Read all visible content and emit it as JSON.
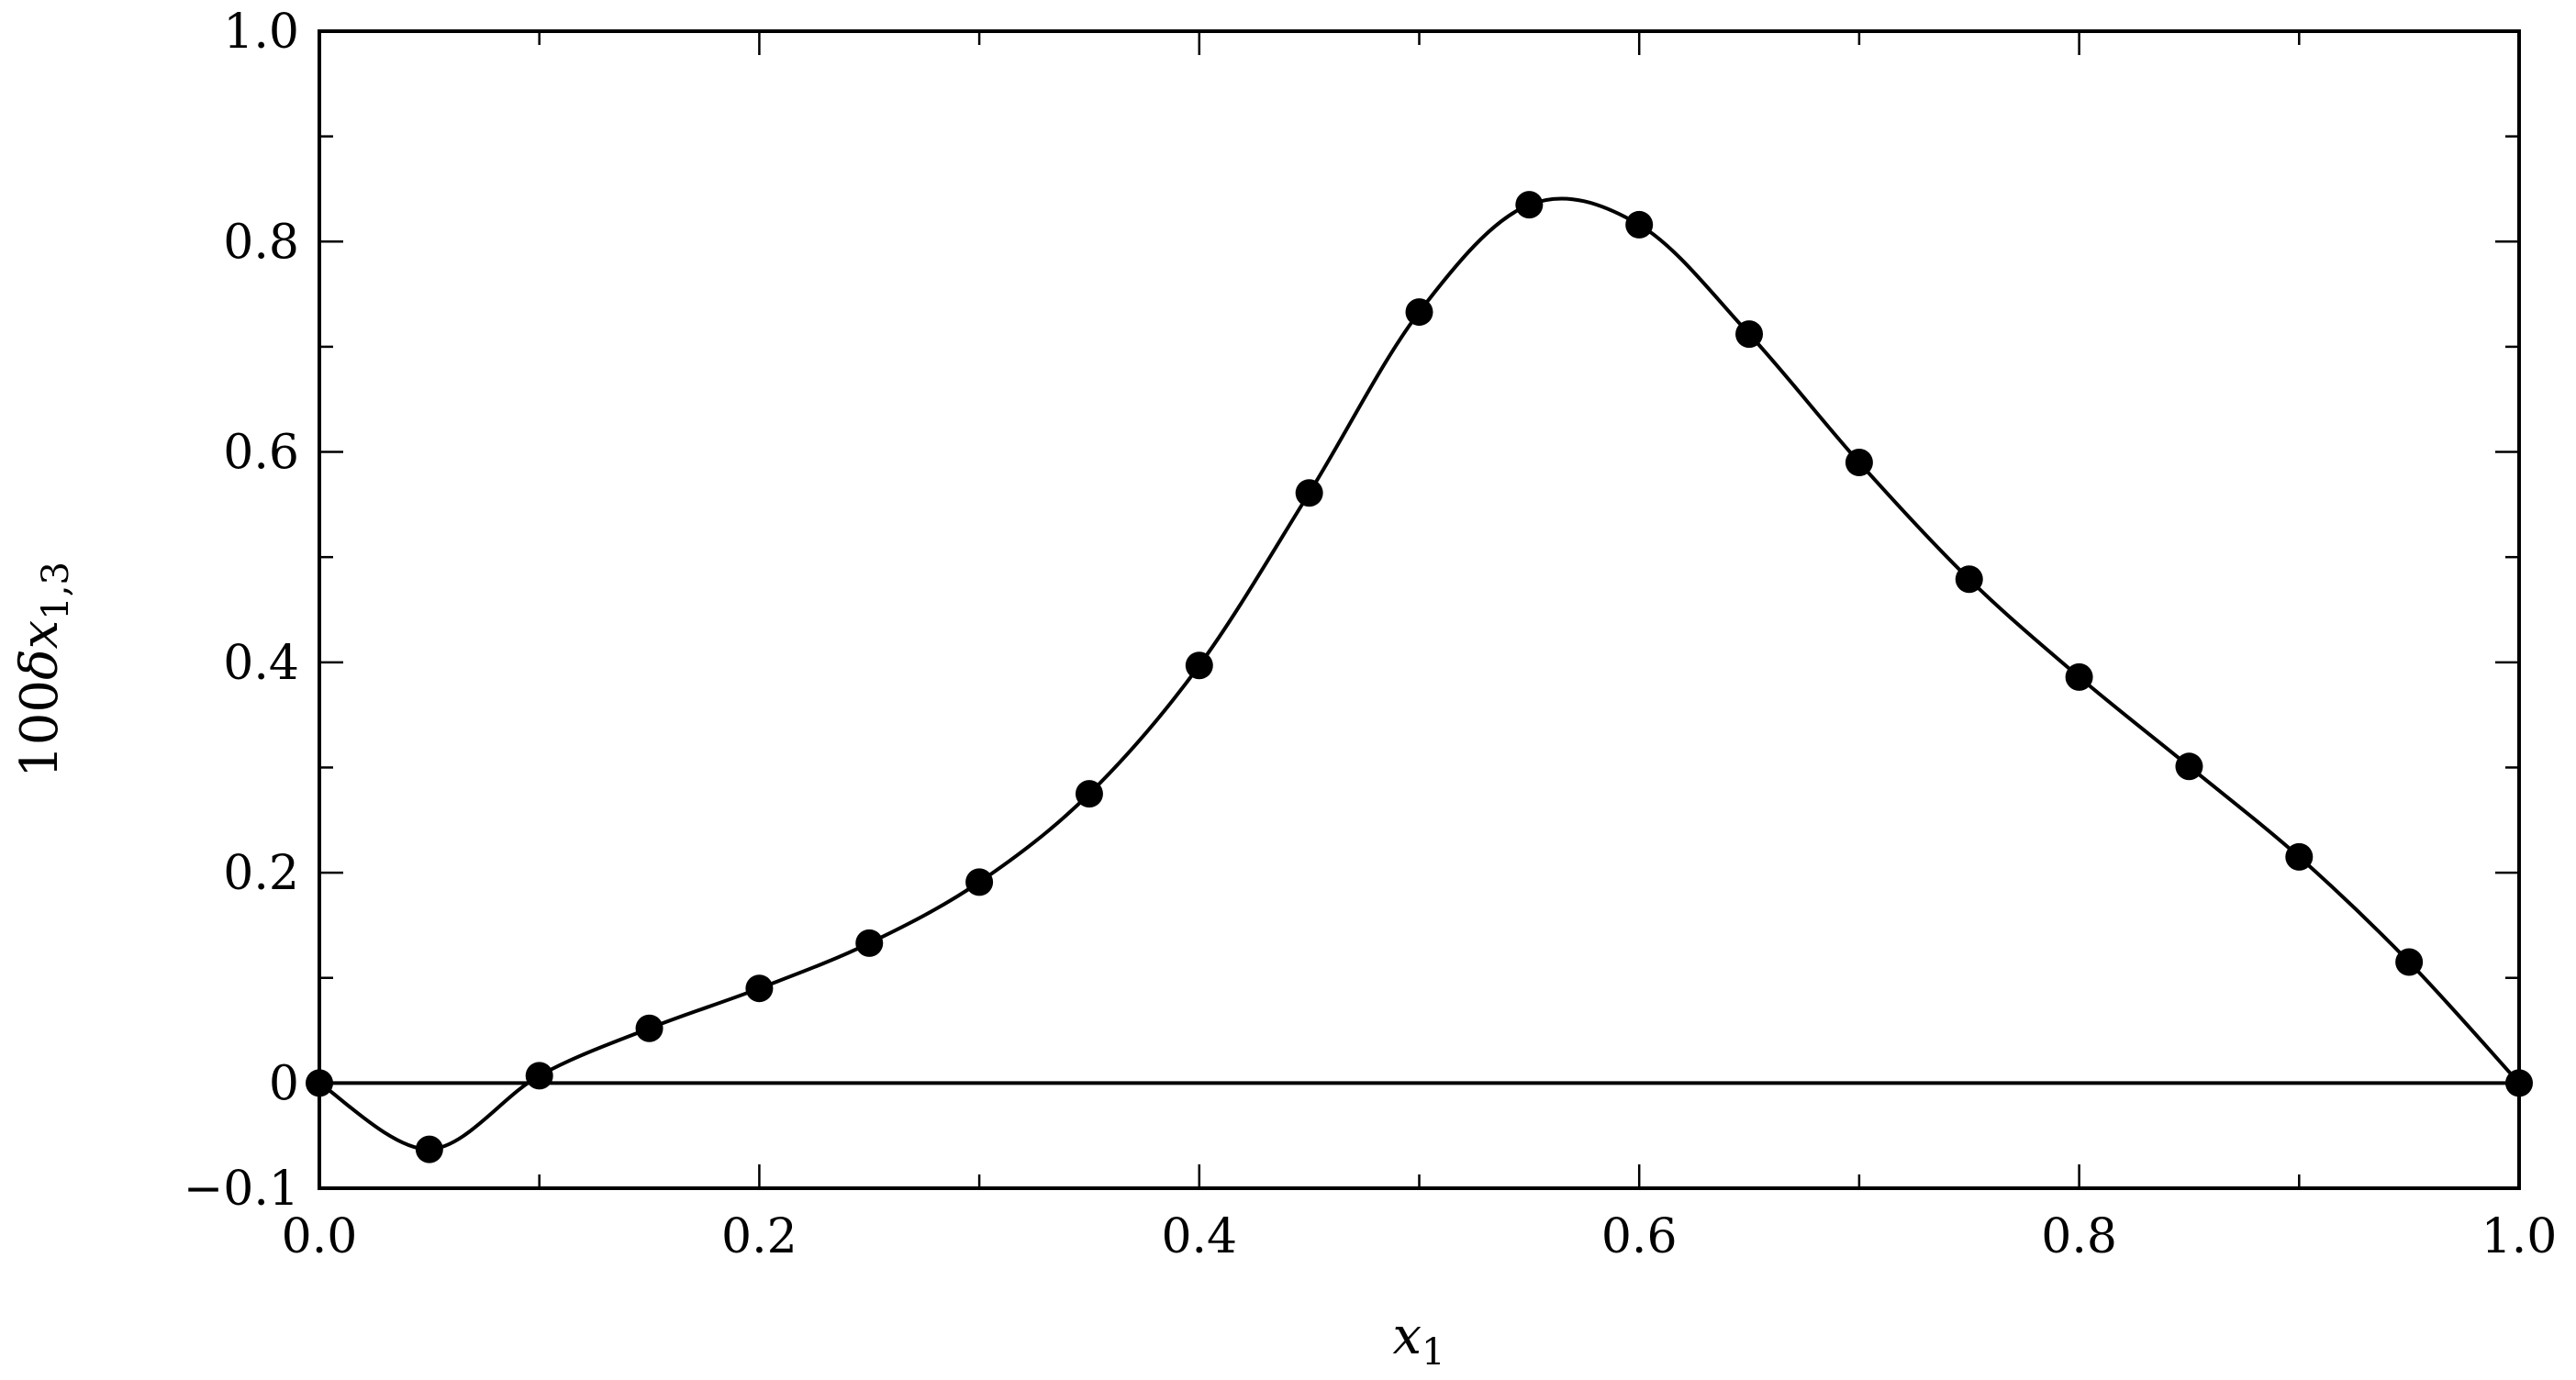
{
  "chart_data": {
    "type": "line",
    "xlabel": "x",
    "xlabel_sub": "1",
    "ylabel_prefix": "100",
    "ylabel_delta": "δ",
    "ylabel_var": "x",
    "ylabel_sub": "1,3",
    "xlim": [
      0,
      1
    ],
    "ylim": [
      -0.1,
      1
    ],
    "x_ticks": [
      {
        "value": 0.0,
        "label": "0.0"
      },
      {
        "value": 0.2,
        "label": "0.2"
      },
      {
        "value": 0.4,
        "label": "0.4"
      },
      {
        "value": 0.6,
        "label": "0.6"
      },
      {
        "value": 0.8,
        "label": "0.8"
      },
      {
        "value": 1.0,
        "label": "1.0"
      }
    ],
    "y_ticks": [
      {
        "value": -0.1,
        "label": "−0.1"
      },
      {
        "value": 0,
        "label": "0"
      },
      {
        "value": 0.2,
        "label": "0.2"
      },
      {
        "value": 0.4,
        "label": "0.4"
      },
      {
        "value": 0.6,
        "label": "0.6"
      },
      {
        "value": 0.8,
        "label": "0.8"
      },
      {
        "value": 1.0,
        "label": "1.0"
      }
    ],
    "x_minor_ticks": [
      0.1,
      0.3,
      0.5,
      0.7,
      0.9
    ],
    "y_minor_ticks": [
      0.1,
      0.3,
      0.5,
      0.7,
      0.9
    ],
    "reference_line_y": 0,
    "grid": false,
    "legend": "none",
    "colors": {
      "line": "#000000",
      "marker": "#000000"
    },
    "series": [
      {
        "x": [
          0.0,
          0.05,
          0.1,
          0.15,
          0.2,
          0.25,
          0.3,
          0.35,
          0.4,
          0.45,
          0.5,
          0.55,
          0.6,
          0.65,
          0.7,
          0.75,
          0.8,
          0.85,
          0.9,
          0.95,
          1.0
        ],
        "y": [
          0.0,
          -0.063,
          0.007,
          0.052,
          0.09,
          0.133,
          0.191,
          0.275,
          0.397,
          0.561,
          0.733,
          0.835,
          0.816,
          0.712,
          0.59,
          0.479,
          0.386,
          0.301,
          0.215,
          0.115,
          0.0
        ]
      }
    ]
  }
}
